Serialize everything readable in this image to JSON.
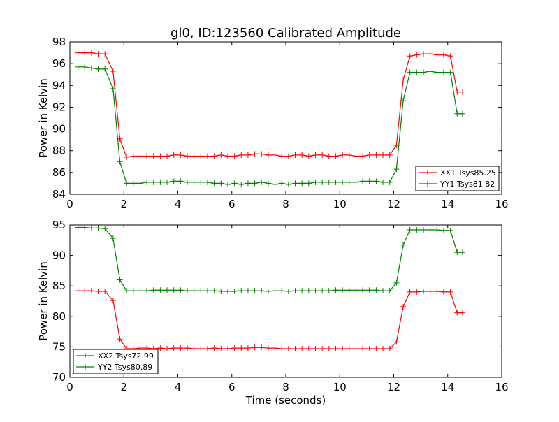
{
  "title": "gl0, ID:123560 Calibrated Amplitude",
  "chart_data": [
    {
      "type": "line",
      "ylabel": "Power in Kelvin",
      "xlabel": "",
      "xlim": [
        0,
        16
      ],
      "ylim": [
        84,
        98
      ],
      "xticks": [
        0,
        2,
        4,
        6,
        8,
        10,
        12,
        14,
        16
      ],
      "yticks": [
        84,
        86,
        88,
        90,
        92,
        94,
        96,
        98
      ],
      "grid": false,
      "legend_position": "lower-right",
      "x": [
        0.3,
        0.55,
        0.8,
        1.05,
        1.3,
        1.6,
        1.85,
        2.1,
        2.35,
        2.6,
        2.85,
        3.1,
        3.35,
        3.6,
        3.85,
        4.1,
        4.35,
        4.6,
        4.85,
        5.1,
        5.35,
        5.6,
        5.85,
        6.1,
        6.35,
        6.6,
        6.85,
        7.1,
        7.35,
        7.6,
        7.85,
        8.1,
        8.35,
        8.6,
        8.85,
        9.1,
        9.35,
        9.6,
        9.85,
        10.1,
        10.35,
        10.6,
        10.85,
        11.1,
        11.35,
        11.6,
        11.85,
        12.1,
        12.35,
        12.6,
        12.85,
        13.1,
        13.35,
        13.6,
        13.85,
        14.1,
        14.35,
        14.55
      ],
      "series": [
        {
          "name": "XX1 Tsys85.25",
          "color": "#ff0000",
          "values": [
            97.0,
            97.0,
            97.0,
            96.9,
            96.9,
            95.3,
            89.1,
            87.4,
            87.5,
            87.5,
            87.5,
            87.5,
            87.5,
            87.5,
            87.6,
            87.6,
            87.5,
            87.5,
            87.5,
            87.5,
            87.5,
            87.6,
            87.5,
            87.5,
            87.6,
            87.6,
            87.7,
            87.7,
            87.6,
            87.6,
            87.5,
            87.5,
            87.6,
            87.6,
            87.5,
            87.6,
            87.6,
            87.5,
            87.5,
            87.6,
            87.6,
            87.5,
            87.5,
            87.6,
            87.6,
            87.6,
            87.6,
            88.5,
            94.5,
            96.7,
            96.8,
            96.9,
            96.9,
            96.8,
            96.8,
            96.7,
            93.4,
            93.4
          ]
        },
        {
          "name": "YY1 Tsys81.82",
          "color": "#008000",
          "values": [
            95.7,
            95.7,
            95.6,
            95.5,
            95.5,
            93.7,
            87.0,
            85.0,
            85.0,
            85.0,
            85.1,
            85.1,
            85.1,
            85.1,
            85.2,
            85.2,
            85.1,
            85.1,
            85.1,
            85.1,
            85.0,
            85.0,
            84.9,
            85.0,
            84.9,
            85.0,
            85.0,
            85.1,
            85.0,
            84.9,
            85.0,
            84.9,
            85.0,
            85.0,
            85.0,
            85.1,
            85.1,
            85.1,
            85.1,
            85.1,
            85.1,
            85.1,
            85.2,
            85.2,
            85.2,
            85.1,
            85.1,
            86.3,
            92.6,
            95.2,
            95.2,
            95.2,
            95.3,
            95.2,
            95.2,
            95.2,
            91.4,
            91.4
          ]
        }
      ]
    },
    {
      "type": "line",
      "ylabel": "Power in Kelvin",
      "xlabel": "Time (seconds)",
      "xlim": [
        0,
        16
      ],
      "ylim": [
        70,
        95
      ],
      "xticks": [
        0,
        2,
        4,
        6,
        8,
        10,
        12,
        14,
        16
      ],
      "yticks": [
        70,
        75,
        80,
        85,
        90,
        95
      ],
      "grid": false,
      "legend_position": "lower-left",
      "x": [
        0.3,
        0.55,
        0.8,
        1.05,
        1.3,
        1.6,
        1.85,
        2.1,
        2.35,
        2.6,
        2.85,
        3.1,
        3.35,
        3.6,
        3.85,
        4.1,
        4.35,
        4.6,
        4.85,
        5.1,
        5.35,
        5.6,
        5.85,
        6.1,
        6.35,
        6.6,
        6.85,
        7.1,
        7.35,
        7.6,
        7.85,
        8.1,
        8.35,
        8.6,
        8.85,
        9.1,
        9.35,
        9.6,
        9.85,
        10.1,
        10.35,
        10.6,
        10.85,
        11.1,
        11.35,
        11.6,
        11.85,
        12.1,
        12.35,
        12.6,
        12.85,
        13.1,
        13.35,
        13.6,
        13.85,
        14.1,
        14.35,
        14.55
      ],
      "series": [
        {
          "name": "XX2 Tsys72.99",
          "color": "#ff0000",
          "values": [
            84.2,
            84.2,
            84.2,
            84.1,
            84.1,
            82.6,
            76.3,
            74.7,
            74.7,
            74.8,
            74.8,
            74.7,
            74.8,
            74.7,
            74.8,
            74.8,
            74.8,
            74.7,
            74.7,
            74.7,
            74.8,
            74.7,
            74.7,
            74.8,
            74.8,
            74.8,
            74.9,
            74.9,
            74.8,
            74.8,
            74.7,
            74.7,
            74.7,
            74.7,
            74.7,
            74.7,
            74.7,
            74.7,
            74.7,
            74.7,
            74.7,
            74.7,
            74.7,
            74.7,
            74.7,
            74.7,
            74.7,
            75.8,
            81.6,
            84.0,
            84.0,
            84.1,
            84.1,
            84.1,
            84.0,
            84.0,
            80.6,
            80.6
          ]
        },
        {
          "name": "YY2 Tsys80.89",
          "color": "#008000",
          "values": [
            94.6,
            94.6,
            94.5,
            94.5,
            94.4,
            92.8,
            86.0,
            84.2,
            84.2,
            84.2,
            84.2,
            84.3,
            84.3,
            84.3,
            84.3,
            84.3,
            84.2,
            84.2,
            84.2,
            84.2,
            84.2,
            84.1,
            84.1,
            84.1,
            84.2,
            84.2,
            84.2,
            84.2,
            84.1,
            84.2,
            84.2,
            84.1,
            84.2,
            84.2,
            84.2,
            84.2,
            84.2,
            84.2,
            84.3,
            84.3,
            84.3,
            84.3,
            84.3,
            84.3,
            84.3,
            84.2,
            84.2,
            85.5,
            91.7,
            94.2,
            94.2,
            94.2,
            94.2,
            94.2,
            94.1,
            94.1,
            90.5,
            90.5
          ]
        }
      ]
    }
  ]
}
